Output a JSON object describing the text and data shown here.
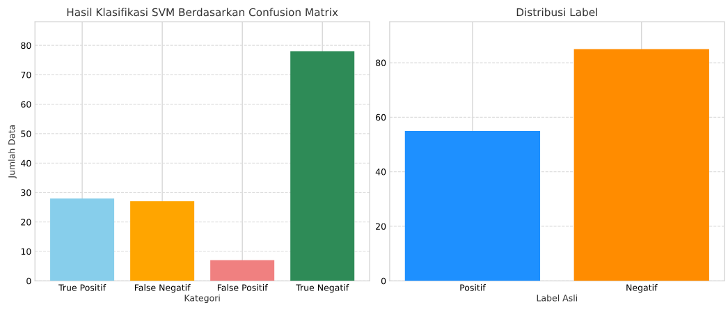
{
  "chart_data": [
    {
      "type": "bar",
      "title": "Hasil Klasifikasi SVM Berdasarkan Confusion Matrix",
      "xlabel": "Kategori",
      "ylabel": "Jumlah Data",
      "categories": [
        "True Positif",
        "False Negatif",
        "False Positif",
        "True Negatif"
      ],
      "values": [
        28,
        27,
        7,
        78
      ],
      "colors": [
        "#87ceeb",
        "#ffa500",
        "#f08080",
        "#2e8b57"
      ],
      "ylim": [
        0,
        88
      ],
      "yticks": [
        0,
        10,
        20,
        30,
        40,
        50,
        60,
        70,
        80
      ],
      "grid": true
    },
    {
      "type": "bar",
      "title": "Distribusi Label",
      "xlabel": "Label Asli",
      "categories": [
        "Positif",
        "Negatif"
      ],
      "values": [
        55,
        85
      ],
      "colors": [
        "#1e90ff",
        "#ff8c00"
      ],
      "ylim": [
        0,
        95
      ],
      "yticks": [
        0,
        20,
        40,
        60,
        80
      ],
      "grid": true
    }
  ]
}
